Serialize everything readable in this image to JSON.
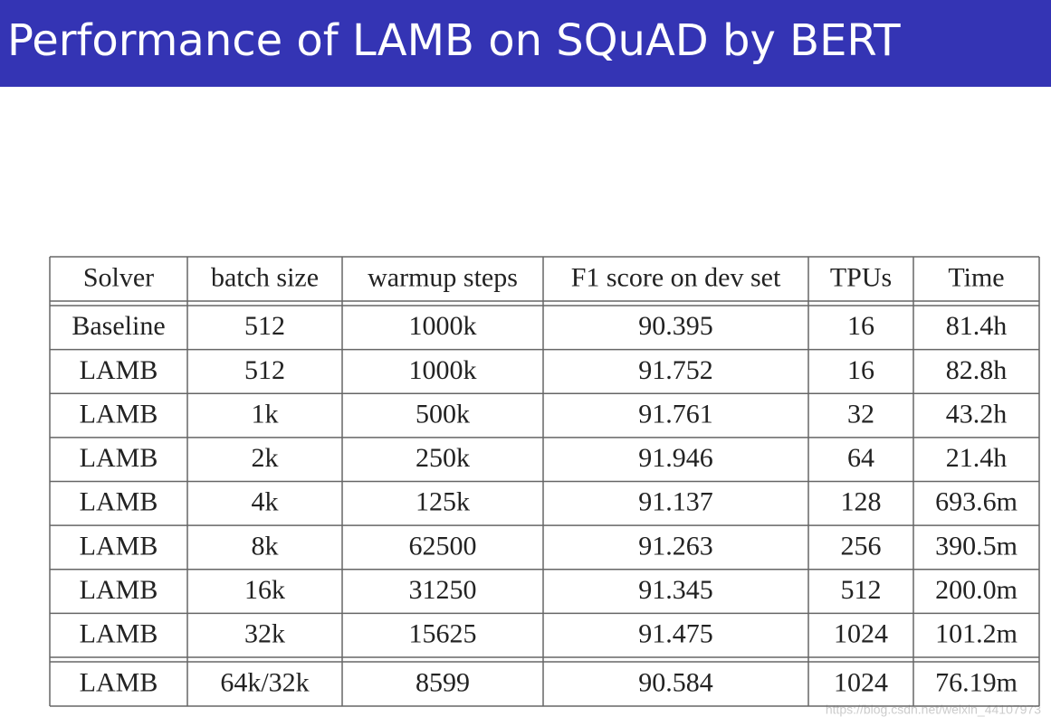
{
  "header": {
    "title": "Performance of LAMB on SQuAD by BERT"
  },
  "table": {
    "columns": [
      "Solver",
      "batch size",
      "warmup steps",
      "F1 score on dev set",
      "TPUs",
      "Time"
    ],
    "rows": [
      [
        "Baseline",
        "512",
        "1000k",
        "90.395",
        "16",
        "81.4h"
      ],
      [
        "LAMB",
        "512",
        "1000k",
        "91.752",
        "16",
        "82.8h"
      ],
      [
        "LAMB",
        "1k",
        "500k",
        "91.761",
        "32",
        "43.2h"
      ],
      [
        "LAMB",
        "2k",
        "250k",
        "91.946",
        "64",
        "21.4h"
      ],
      [
        "LAMB",
        "4k",
        "125k",
        "91.137",
        "128",
        "693.6m"
      ],
      [
        "LAMB",
        "8k",
        "62500",
        "91.263",
        "256",
        "390.5m"
      ],
      [
        "LAMB",
        "16k",
        "31250",
        "91.345",
        "512",
        "200.0m"
      ],
      [
        "LAMB",
        "32k",
        "15625",
        "91.475",
        "1024",
        "101.2m"
      ],
      [
        "LAMB",
        "64k/32k",
        "8599",
        "90.584",
        "1024",
        "76.19m"
      ]
    ]
  },
  "watermark": "https://blog.csdn.net/weixin_44107973"
}
